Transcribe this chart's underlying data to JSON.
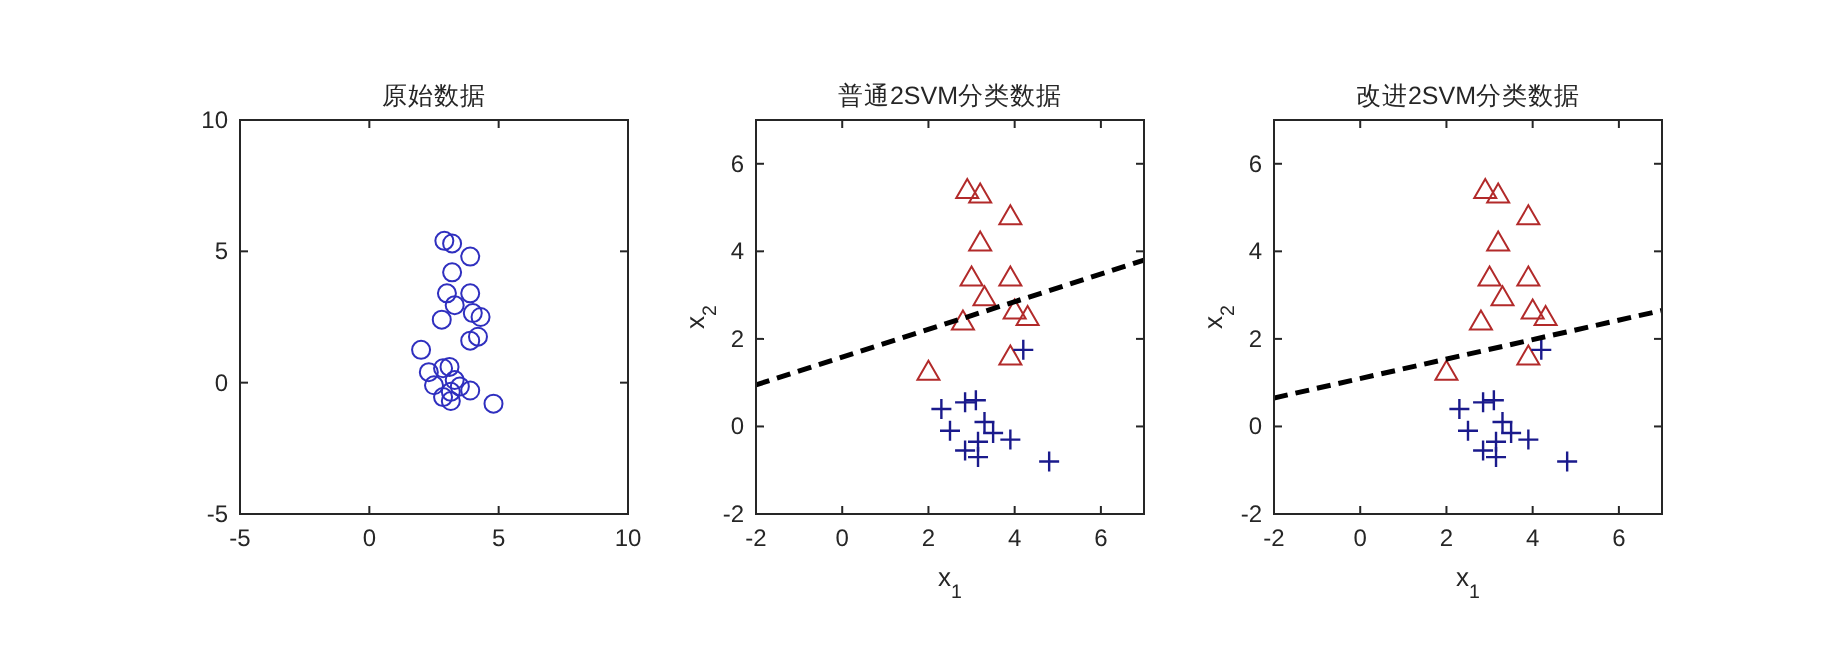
{
  "chart_data": [
    {
      "type": "scatter",
      "title": "原始数据",
      "xlim": [
        -5,
        10
      ],
      "ylim": [
        -5,
        10
      ],
      "xticks": [
        -5,
        0,
        5,
        10
      ],
      "yticks": [
        -5,
        0,
        5,
        10
      ],
      "marker": "circle",
      "series": [
        {
          "color": "#2f2fbf",
          "x": [
            2.9,
            3.2,
            3.9,
            3.2,
            3.0,
            3.9,
            3.3,
            4.0,
            4.3,
            2.8,
            3.9,
            2.0,
            4.2,
            2.3,
            2.85,
            3.1,
            2.5,
            3.3,
            3.5,
            3.9,
            3.15,
            2.85,
            3.15,
            4.8
          ],
          "values": [
            5.4,
            5.3,
            4.8,
            4.2,
            3.4,
            3.4,
            2.95,
            2.65,
            2.5,
            2.4,
            1.6,
            1.25,
            1.75,
            0.4,
            0.55,
            0.6,
            -0.1,
            0.1,
            -0.15,
            -0.3,
            -0.35,
            -0.55,
            -0.7,
            -0.8
          ]
        }
      ]
    },
    {
      "type": "scatter",
      "title": "普通2SVM分类数据",
      "xlabel": "x$_{1}$",
      "ylabel": "x$_{2}$",
      "xlim": [
        -2,
        7
      ],
      "ylim": [
        -2,
        7
      ],
      "xticks": [
        -2,
        0,
        2,
        4,
        6
      ],
      "yticks": [
        -2,
        0,
        2,
        4,
        6
      ],
      "series": [
        {
          "marker": "triangle",
          "color": "#b22a2a",
          "x": [
            2.9,
            3.2,
            3.9,
            3.2,
            3.0,
            3.9,
            3.3,
            4.0,
            4.3,
            2.8,
            3.9,
            2.0
          ],
          "values": [
            5.4,
            5.3,
            4.8,
            4.2,
            3.4,
            3.4,
            2.95,
            2.65,
            2.5,
            2.4,
            1.6,
            1.25
          ]
        },
        {
          "marker": "cross",
          "color": "#1a1a8c",
          "x": [
            4.2,
            2.3,
            2.85,
            3.1,
            2.5,
            3.3,
            3.5,
            3.9,
            3.15,
            2.85,
            3.15,
            4.8
          ],
          "values": [
            1.75,
            0.4,
            0.55,
            0.6,
            -0.1,
            0.1,
            -0.15,
            -0.3,
            -0.35,
            -0.55,
            -0.7,
            -0.8
          ]
        },
        {
          "type": "line",
          "line_style": "dashed",
          "color": "#000000",
          "x": [
            -2,
            7
          ],
          "values": [
            0.95,
            3.8
          ]
        }
      ]
    },
    {
      "type": "scatter",
      "title": "改进2SVM分类数据",
      "xlabel": "x$_{1}$",
      "ylabel": "x$_{2}$",
      "xlim": [
        -2,
        7
      ],
      "ylim": [
        -2,
        7
      ],
      "xticks": [
        -2,
        0,
        2,
        4,
        6
      ],
      "yticks": [
        -2,
        0,
        2,
        4,
        6
      ],
      "series": [
        {
          "marker": "triangle",
          "color": "#b22a2a",
          "x": [
            2.9,
            3.2,
            3.9,
            3.2,
            3.0,
            3.9,
            3.3,
            4.0,
            4.3,
            2.8,
            3.9,
            2.0
          ],
          "values": [
            5.4,
            5.3,
            4.8,
            4.2,
            3.4,
            3.4,
            2.95,
            2.65,
            2.5,
            2.4,
            1.6,
            1.25
          ]
        },
        {
          "marker": "cross",
          "color": "#1a1a8c",
          "x": [
            4.2,
            2.3,
            2.85,
            3.1,
            2.5,
            3.3,
            3.5,
            3.9,
            3.15,
            2.85,
            3.15,
            4.8
          ],
          "values": [
            1.75,
            0.4,
            0.55,
            0.6,
            -0.1,
            0.1,
            -0.15,
            -0.3,
            -0.35,
            -0.55,
            -0.7,
            -0.8
          ]
        },
        {
          "type": "line",
          "line_style": "dashed",
          "color": "#000000",
          "x": [
            -2,
            7
          ],
          "values": [
            0.65,
            2.65
          ]
        }
      ]
    }
  ]
}
